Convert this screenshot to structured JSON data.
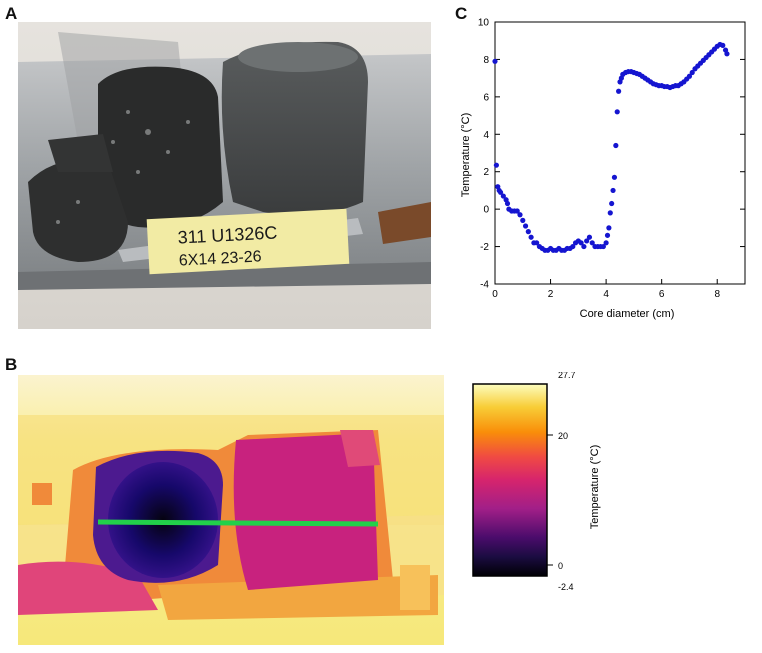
{
  "panels": {
    "a_label": "A",
    "b_label": "B",
    "c_label": "C"
  },
  "photo": {
    "label_line1": "311 U1326C",
    "label_line2": "6X14 23-26"
  },
  "colorbar": {
    "max_label": "27.7",
    "tick_20": "20",
    "tick_0": "0",
    "min_label": "-2.4",
    "title": "Temperature (°C)"
  },
  "chart_data": {
    "type": "scatter",
    "xlabel": "Core diameter (cm)",
    "ylabel": "Temperature (°C)",
    "xlim": [
      0,
      9
    ],
    "ylim": [
      -4,
      10
    ],
    "xticks": [
      0,
      2,
      4,
      6,
      8
    ],
    "yticks": [
      -4,
      -2,
      0,
      2,
      4,
      6,
      8,
      10
    ],
    "color": "#1515d0",
    "points": [
      [
        0.0,
        7.9
      ],
      [
        0.05,
        2.35
      ],
      [
        0.1,
        1.2
      ],
      [
        0.15,
        1.0
      ],
      [
        0.2,
        0.9
      ],
      [
        0.3,
        0.7
      ],
      [
        0.4,
        0.5
      ],
      [
        0.45,
        0.3
      ],
      [
        0.5,
        0.0
      ],
      [
        0.6,
        -0.1
      ],
      [
        0.7,
        -0.1
      ],
      [
        0.8,
        -0.1
      ],
      [
        0.9,
        -0.3
      ],
      [
        1.0,
        -0.6
      ],
      [
        1.1,
        -0.9
      ],
      [
        1.2,
        -1.2
      ],
      [
        1.3,
        -1.5
      ],
      [
        1.4,
        -1.8
      ],
      [
        1.5,
        -1.8
      ],
      [
        1.6,
        -2.0
      ],
      [
        1.7,
        -2.1
      ],
      [
        1.8,
        -2.2
      ],
      [
        1.9,
        -2.2
      ],
      [
        2.0,
        -2.1
      ],
      [
        2.1,
        -2.2
      ],
      [
        2.2,
        -2.2
      ],
      [
        2.3,
        -2.1
      ],
      [
        2.4,
        -2.2
      ],
      [
        2.5,
        -2.2
      ],
      [
        2.6,
        -2.1
      ],
      [
        2.7,
        -2.1
      ],
      [
        2.8,
        -2.0
      ],
      [
        2.9,
        -1.8
      ],
      [
        3.0,
        -1.7
      ],
      [
        3.1,
        -1.8
      ],
      [
        3.2,
        -2.0
      ],
      [
        3.3,
        -1.7
      ],
      [
        3.4,
        -1.5
      ],
      [
        3.5,
        -1.8
      ],
      [
        3.6,
        -2.0
      ],
      [
        3.7,
        -2.0
      ],
      [
        3.8,
        -2.0
      ],
      [
        3.9,
        -2.0
      ],
      [
        4.0,
        -1.8
      ],
      [
        4.05,
        -1.4
      ],
      [
        4.1,
        -1.0
      ],
      [
        4.15,
        -0.2
      ],
      [
        4.2,
        0.3
      ],
      [
        4.25,
        1.0
      ],
      [
        4.3,
        1.7
      ],
      [
        4.35,
        3.4
      ],
      [
        4.4,
        5.2
      ],
      [
        4.45,
        6.3
      ],
      [
        4.5,
        6.8
      ],
      [
        4.55,
        7.0
      ],
      [
        4.6,
        7.2
      ],
      [
        4.7,
        7.3
      ],
      [
        4.8,
        7.35
      ],
      [
        4.9,
        7.35
      ],
      [
        5.0,
        7.3
      ],
      [
        5.1,
        7.25
      ],
      [
        5.2,
        7.2
      ],
      [
        5.3,
        7.1
      ],
      [
        5.4,
        7.0
      ],
      [
        5.5,
        6.9
      ],
      [
        5.6,
        6.8
      ],
      [
        5.7,
        6.7
      ],
      [
        5.8,
        6.65
      ],
      [
        5.9,
        6.6
      ],
      [
        6.0,
        6.6
      ],
      [
        6.1,
        6.55
      ],
      [
        6.2,
        6.55
      ],
      [
        6.3,
        6.5
      ],
      [
        6.4,
        6.55
      ],
      [
        6.5,
        6.6
      ],
      [
        6.6,
        6.6
      ],
      [
        6.7,
        6.7
      ],
      [
        6.8,
        6.8
      ],
      [
        6.9,
        6.95
      ],
      [
        7.0,
        7.1
      ],
      [
        7.1,
        7.3
      ],
      [
        7.2,
        7.5
      ],
      [
        7.3,
        7.65
      ],
      [
        7.4,
        7.8
      ],
      [
        7.5,
        7.95
      ],
      [
        7.6,
        8.1
      ],
      [
        7.7,
        8.25
      ],
      [
        7.8,
        8.4
      ],
      [
        7.9,
        8.55
      ],
      [
        8.0,
        8.7
      ],
      [
        8.1,
        8.8
      ],
      [
        8.2,
        8.75
      ],
      [
        8.3,
        8.5
      ],
      [
        8.35,
        8.3
      ]
    ]
  }
}
